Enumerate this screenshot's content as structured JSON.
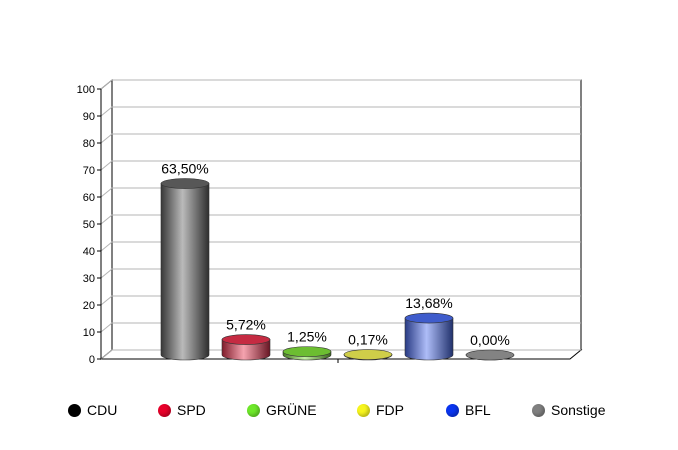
{
  "chart_data": {
    "type": "bar",
    "categories": [
      "CDU",
      "SPD",
      "GRÜNE",
      "FDP",
      "BFL",
      "Sonstige"
    ],
    "values": [
      63.5,
      5.72,
      1.25,
      0.17,
      13.68,
      0.0
    ],
    "value_labels": [
      "63,50%",
      "5,72%",
      "1,25%",
      "0,17%",
      "13,68%",
      "0,00%"
    ],
    "colors": [
      "#666666",
      "#e8324e",
      "#7fe03a",
      "#f4f256",
      "#4a6cf0",
      "#9a9a9a"
    ],
    "legend_colors": [
      "#000000",
      "#e8002a",
      "#6ee82a",
      "#f7f51e",
      "#0a35f0",
      "#808080"
    ],
    "yticks": [
      0,
      10,
      20,
      30,
      40,
      50,
      60,
      70,
      80,
      90,
      100
    ],
    "ylim": [
      0,
      100
    ],
    "grid": true,
    "legend_position": "bottom",
    "title": "",
    "xlabel": "",
    "ylabel": ""
  }
}
